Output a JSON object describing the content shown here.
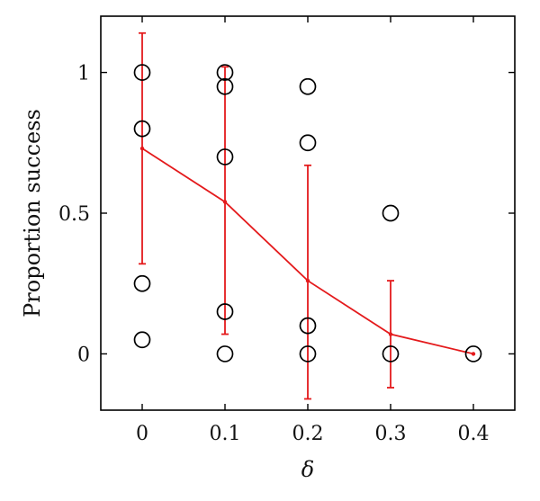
{
  "chart_data": {
    "type": "scatter",
    "title": "",
    "xlabel": "δ",
    "ylabel": "Proportion success",
    "xlim": [
      -0.05,
      0.45
    ],
    "ylim": [
      -0.2,
      1.2
    ],
    "grid": false,
    "x_ticks": [
      0,
      0.1,
      0.2,
      0.3,
      0.4
    ],
    "x_tick_labels": [
      "0",
      "0.1",
      "0.2",
      "0.3",
      "0.4"
    ],
    "y_ticks": [
      0,
      0.5,
      1
    ],
    "y_tick_labels": [
      "0",
      "0.5",
      "1"
    ],
    "colors": {
      "points": "#000000",
      "mean": "#e41a1c"
    },
    "series": [
      {
        "kind": "points",
        "marker": "open-circle",
        "points": [
          {
            "x": 0,
            "y": 1.0
          },
          {
            "x": 0,
            "y": 0.8
          },
          {
            "x": 0,
            "y": 0.25
          },
          {
            "x": 0,
            "y": 0.05
          },
          {
            "x": 0.1,
            "y": 1.0
          },
          {
            "x": 0.1,
            "y": 0.95
          },
          {
            "x": 0.1,
            "y": 0.7
          },
          {
            "x": 0.1,
            "y": 0.15
          },
          {
            "x": 0.1,
            "y": 0.0
          },
          {
            "x": 0.2,
            "y": 0.95
          },
          {
            "x": 0.2,
            "y": 0.75
          },
          {
            "x": 0.2,
            "y": 0.1
          },
          {
            "x": 0.2,
            "y": 0.0
          },
          {
            "x": 0.3,
            "y": 0.5
          },
          {
            "x": 0.3,
            "y": 0.0
          },
          {
            "x": 0.4,
            "y": 0.0
          }
        ]
      },
      {
        "kind": "mean-with-errorbars",
        "points": [
          {
            "x": 0,
            "y": 0.73,
            "lower": 0.32,
            "upper": 1.14
          },
          {
            "x": 0.1,
            "y": 0.54,
            "lower": 0.07,
            "upper": 1.02
          },
          {
            "x": 0.2,
            "y": 0.26,
            "lower": -0.16,
            "upper": 0.67
          },
          {
            "x": 0.3,
            "y": 0.07,
            "lower": -0.12,
            "upper": 0.26
          },
          {
            "x": 0.4,
            "y": 0.0,
            "lower": 0.0,
            "upper": 0.0
          }
        ]
      }
    ]
  }
}
